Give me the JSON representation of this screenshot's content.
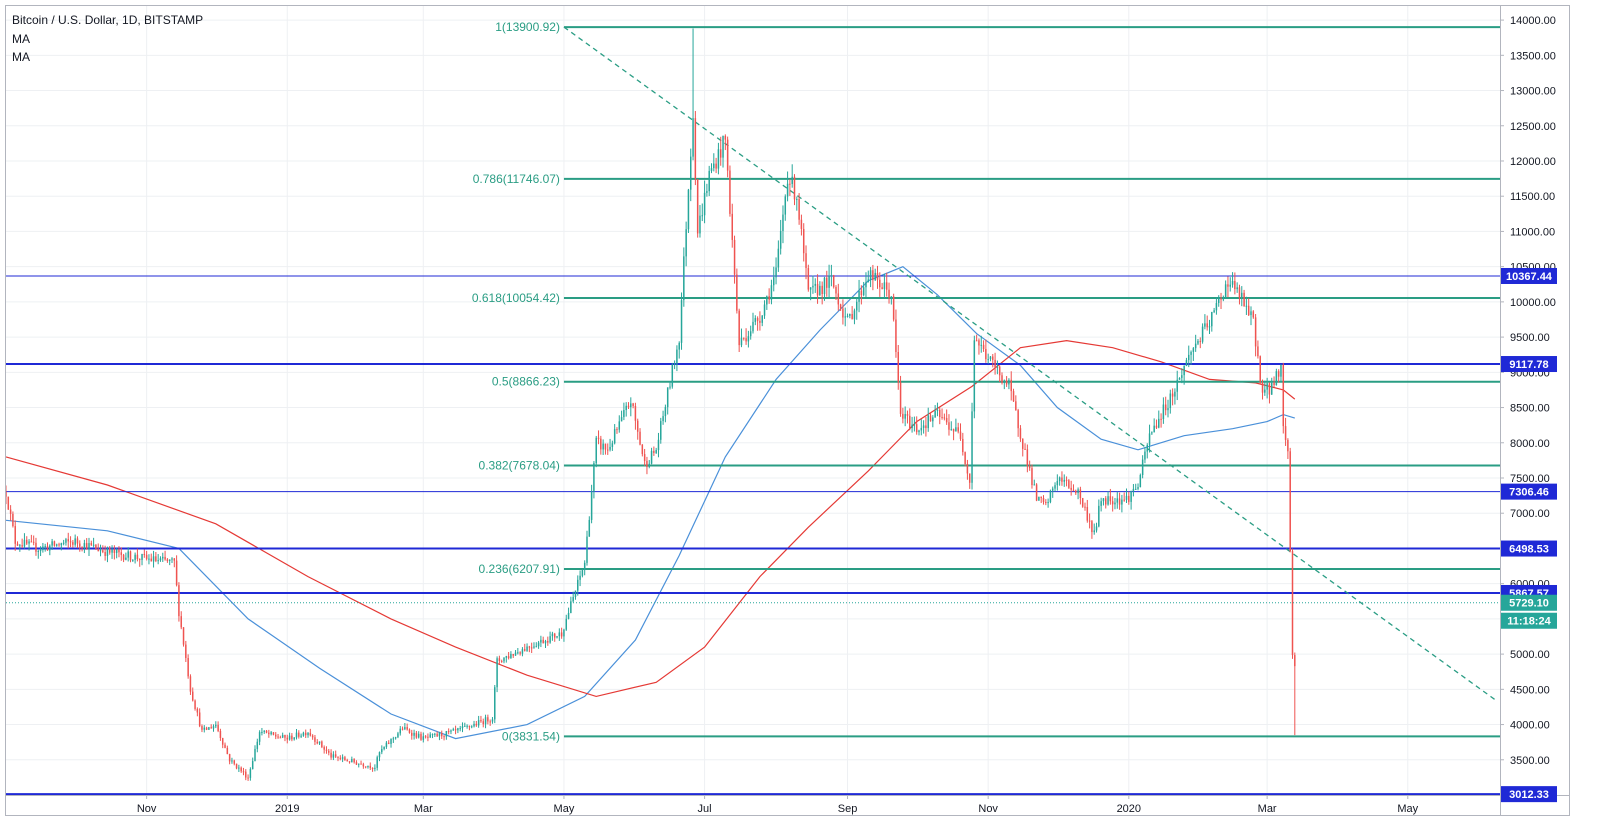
{
  "header": {
    "title": "Bitcoin / U.S. Dollar, 1D, BITSTAMP",
    "indicators": [
      "MA",
      "MA"
    ]
  },
  "colors": {
    "up": "#26a69a",
    "down": "#ef5350",
    "fib": "#2a9d84",
    "hline": "#1f29d6",
    "ma_fast": "#4a90d9",
    "ma_slow": "#e53935",
    "trend": "#2a9d84",
    "grid": "#eef0f3"
  },
  "chart_data": {
    "type": "candlestick",
    "symbol": "BTCUSD",
    "interval": "1D",
    "exchange": "BITSTAMP",
    "ylim": [
      3000,
      14200
    ],
    "y_ticks": [
      3500,
      4000,
      4500,
      5000,
      5500,
      6000,
      6500,
      7000,
      7500,
      8000,
      8500,
      9000,
      9500,
      10000,
      10500,
      11000,
      11500,
      12000,
      12500,
      13000,
      13500,
      14000
    ],
    "y_tick_labels": [
      "3500.00",
      "4000.00",
      "4500.00",
      "5000.00",
      "5500.00",
      "6000.00",
      "6500.00",
      "7000.00",
      "7500.00",
      "8000.00",
      "8500.00",
      "9000.00",
      "9500.00",
      "10000.00",
      "10500.00",
      "11000.00",
      "11500.00",
      "12000.00",
      "12500.00",
      "13000.00",
      "13500.00",
      "14000.00"
    ],
    "x_range": [
      "2018-09-01",
      "2020-06-10"
    ],
    "x_ticks": [
      {
        "date": "2018-11-01",
        "label": "Nov"
      },
      {
        "date": "2019-01-01",
        "label": "2019"
      },
      {
        "date": "2019-03-01",
        "label": "Mar"
      },
      {
        "date": "2019-05-01",
        "label": "May"
      },
      {
        "date": "2019-07-01",
        "label": "Jul"
      },
      {
        "date": "2019-09-01",
        "label": "Sep"
      },
      {
        "date": "2019-11-01",
        "label": "Nov"
      },
      {
        "date": "2020-01-01",
        "label": "2020"
      },
      {
        "date": "2020-03-01",
        "label": "Mar"
      },
      {
        "date": "2020-05-01",
        "label": "May"
      }
    ],
    "price_path": [
      [
        "2018-09-01",
        7300
      ],
      [
        "2018-09-05",
        6600
      ],
      [
        "2018-09-15",
        6500
      ],
      [
        "2018-10-01",
        6600
      ],
      [
        "2018-10-15",
        6450
      ],
      [
        "2018-11-01",
        6350
      ],
      [
        "2018-11-13",
        6300
      ],
      [
        "2018-11-15",
        5600
      ],
      [
        "2018-11-20",
        4500
      ],
      [
        "2018-11-25",
        3900
      ],
      [
        "2018-12-01",
        4000
      ],
      [
        "2018-12-07",
        3500
      ],
      [
        "2018-12-15",
        3250
      ],
      [
        "2018-12-20",
        3900
      ],
      [
        "2018-12-25",
        3850
      ],
      [
        "2019-01-01",
        3800
      ],
      [
        "2019-01-10",
        3900
      ],
      [
        "2019-01-20",
        3550
      ],
      [
        "2019-02-01",
        3450
      ],
      [
        "2019-02-08",
        3400
      ],
      [
        "2019-02-10",
        3600
      ],
      [
        "2019-02-20",
        3950
      ],
      [
        "2019-03-01",
        3800
      ],
      [
        "2019-03-15",
        3900
      ],
      [
        "2019-03-31",
        4100
      ],
      [
        "2019-04-02",
        4900
      ],
      [
        "2019-04-15",
        5100
      ],
      [
        "2019-04-30",
        5300
      ],
      [
        "2019-05-10",
        6300
      ],
      [
        "2019-05-15",
        8000
      ],
      [
        "2019-05-20",
        7900
      ],
      [
        "2019-05-30",
        8600
      ],
      [
        "2019-06-05",
        7700
      ],
      [
        "2019-06-10",
        7900
      ],
      [
        "2019-06-20",
        9500
      ],
      [
        "2019-06-26",
        12700
      ],
      [
        "2019-06-28",
        11000
      ],
      [
        "2019-07-03",
        11800
      ],
      [
        "2019-07-10",
        12300
      ],
      [
        "2019-07-16",
        9400
      ],
      [
        "2019-07-25",
        9800
      ],
      [
        "2019-08-01",
        10400
      ],
      [
        "2019-08-06",
        11800
      ],
      [
        "2019-08-10",
        11500
      ],
      [
        "2019-08-15",
        10100
      ],
      [
        "2019-08-25",
        10300
      ],
      [
        "2019-09-01",
        9700
      ],
      [
        "2019-09-10",
        10400
      ],
      [
        "2019-09-20",
        10100
      ],
      [
        "2019-09-24",
        8400
      ],
      [
        "2019-10-01",
        8200
      ],
      [
        "2019-10-10",
        8400
      ],
      [
        "2019-10-20",
        8100
      ],
      [
        "2019-10-24",
        7450
      ],
      [
        "2019-10-26",
        9500
      ],
      [
        "2019-11-01",
        9200
      ],
      [
        "2019-11-10",
        8800
      ],
      [
        "2019-11-22",
        7200
      ],
      [
        "2019-11-26",
        7100
      ],
      [
        "2019-12-01",
        7500
      ],
      [
        "2019-12-10",
        7300
      ],
      [
        "2019-12-17",
        6700
      ],
      [
        "2019-12-20",
        7200
      ],
      [
        "2019-12-31",
        7200
      ],
      [
        "2020-01-05",
        7400
      ],
      [
        "2020-01-10",
        8100
      ],
      [
        "2020-01-20",
        8700
      ],
      [
        "2020-01-28",
        9300
      ],
      [
        "2020-02-05",
        9700
      ],
      [
        "2020-02-13",
        10300
      ],
      [
        "2020-02-18",
        10100
      ],
      [
        "2020-02-24",
        9700
      ],
      [
        "2020-02-28",
        8700
      ],
      [
        "2020-03-03",
        8800
      ],
      [
        "2020-03-07",
        9100
      ],
      [
        "2020-03-08",
        8200
      ],
      [
        "2020-03-10",
        7900
      ],
      [
        "2020-03-12",
        5000
      ],
      [
        "2020-03-13",
        4900
      ]
    ],
    "ma_fast": [
      [
        "2018-09-01",
        6900
      ],
      [
        "2018-10-15",
        6750
      ],
      [
        "2018-11-15",
        6500
      ],
      [
        "2018-12-15",
        5500
      ],
      [
        "2019-01-15",
        4800
      ],
      [
        "2019-02-15",
        4150
      ],
      [
        "2019-03-15",
        3800
      ],
      [
        "2019-04-15",
        4000
      ],
      [
        "2019-05-10",
        4400
      ],
      [
        "2019-06-01",
        5200
      ],
      [
        "2019-06-20",
        6400
      ],
      [
        "2019-07-10",
        7800
      ],
      [
        "2019-08-01",
        8900
      ],
      [
        "2019-08-20",
        9600
      ],
      [
        "2019-09-10",
        10300
      ],
      [
        "2019-09-25",
        10500
      ],
      [
        "2019-10-10",
        10100
      ],
      [
        "2019-10-27",
        9550
      ],
      [
        "2019-11-15",
        9100
      ],
      [
        "2019-12-01",
        8500
      ],
      [
        "2019-12-20",
        8050
      ],
      [
        "2020-01-05",
        7900
      ],
      [
        "2020-01-25",
        8100
      ],
      [
        "2020-02-15",
        8200
      ],
      [
        "2020-03-01",
        8300
      ],
      [
        "2020-03-08",
        8400
      ],
      [
        "2020-03-13",
        8350
      ]
    ],
    "ma_slow": [
      [
        "2018-09-01",
        7800
      ],
      [
        "2018-10-15",
        7400
      ],
      [
        "2018-12-01",
        6850
      ],
      [
        "2019-01-10",
        6100
      ],
      [
        "2019-02-15",
        5500
      ],
      [
        "2019-03-15",
        5100
      ],
      [
        "2019-04-15",
        4700
      ],
      [
        "2019-05-15",
        4400
      ],
      [
        "2019-06-10",
        4600
      ],
      [
        "2019-07-01",
        5100
      ],
      [
        "2019-07-25",
        6100
      ],
      [
        "2019-08-15",
        6800
      ],
      [
        "2019-09-10",
        7600
      ],
      [
        "2019-10-01",
        8300
      ],
      [
        "2019-10-25",
        8800
      ],
      [
        "2019-11-15",
        9350
      ],
      [
        "2019-12-05",
        9450
      ],
      [
        "2019-12-25",
        9350
      ],
      [
        "2020-01-15",
        9150
      ],
      [
        "2020-02-05",
        8900
      ],
      [
        "2020-02-25",
        8850
      ],
      [
        "2020-03-08",
        8750
      ],
      [
        "2020-03-13",
        8620
      ]
    ],
    "fib_start": "2019-05-01",
    "fib_levels": [
      {
        "label": "1(13900.92)",
        "value": 13900.92
      },
      {
        "label": "0.786(11746.07)",
        "value": 11746.07
      },
      {
        "label": "0.618(10054.42)",
        "value": 10054.42
      },
      {
        "label": "0.5(8866.23)",
        "value": 8866.23
      },
      {
        "label": "0.382(7678.04)",
        "value": 7678.04
      },
      {
        "label": "0.236(6207.91)",
        "value": 6207.91
      },
      {
        "label": "0(3831.54)",
        "value": 3831.54
      }
    ],
    "horizontal_lines": [
      {
        "label": "10367.44",
        "value": 10367.44,
        "width": 1
      },
      {
        "label": "9117.78",
        "value": 9117.78,
        "width": 2
      },
      {
        "label": "7306.46",
        "value": 7306.46,
        "width": 1
      },
      {
        "label": "6498.53",
        "value": 6498.53,
        "width": 2
      },
      {
        "label": "5867.57",
        "value": 5867.57,
        "width": 2
      },
      {
        "label": "3012.33",
        "value": 3012.33,
        "width": 2
      }
    ],
    "trendline": {
      "from": [
        "2019-05-01",
        13900.92
      ],
      "to": [
        "2020-06-08",
        4350
      ]
    },
    "current_price": {
      "label": "5729.10",
      "value": 5729.1
    },
    "countdown": "11:18:24"
  }
}
